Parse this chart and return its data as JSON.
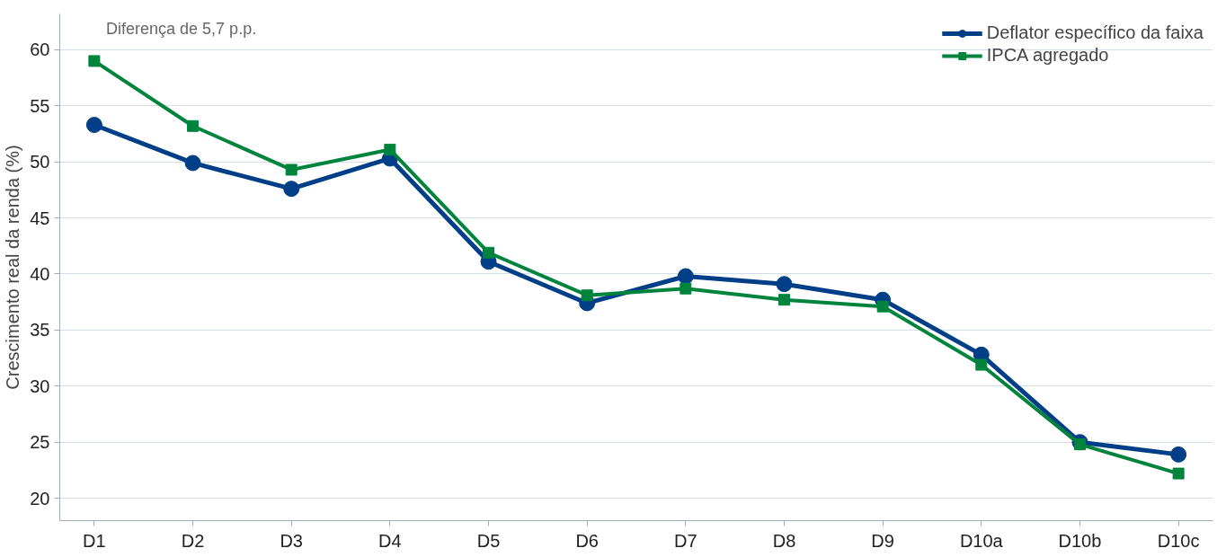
{
  "chart_data": {
    "type": "line",
    "ylabel": "Crescimento real da renda (%)",
    "categories": [
      "D1",
      "D2",
      "D3",
      "D4",
      "D5",
      "D6",
      "D7",
      "D8",
      "D9",
      "D10a",
      "D10b",
      "D10c"
    ],
    "series": [
      {
        "name": "Deflator específico da faixa",
        "color": "#003f87",
        "marker": "circle",
        "values": [
          53.3,
          49.9,
          47.6,
          50.3,
          41.1,
          37.4,
          39.8,
          39.1,
          37.7,
          32.8,
          25.0,
          23.9
        ]
      },
      {
        "name": "IPCA agregado",
        "color": "#00843d",
        "marker": "square",
        "values": [
          59.0,
          53.2,
          49.3,
          51.1,
          41.9,
          38.1,
          38.7,
          37.7,
          37.1,
          31.9,
          24.8,
          22.2
        ]
      }
    ],
    "ylim": [
      18,
      63.2
    ],
    "yticks": [
      20,
      25,
      30,
      35,
      40,
      45,
      50,
      55,
      60
    ],
    "grid": "y",
    "legend": "top right",
    "line_style": "solid",
    "annotations": [
      "Diferença de 5,7 p.p."
    ]
  }
}
